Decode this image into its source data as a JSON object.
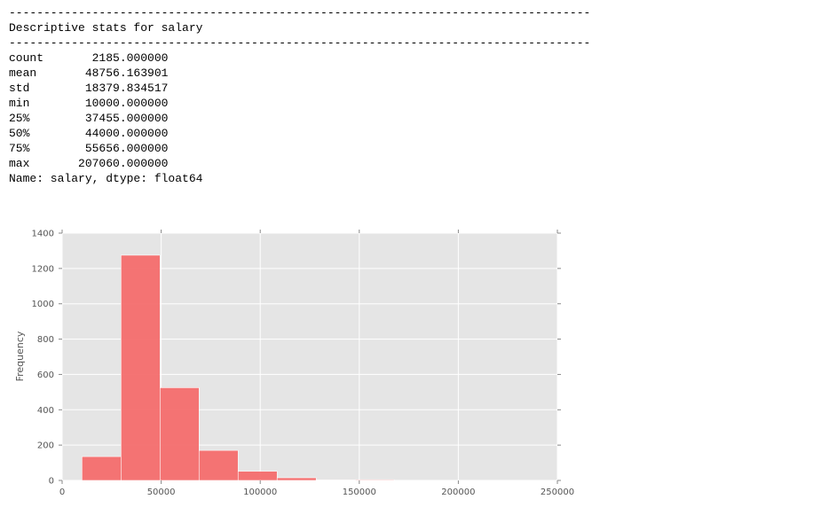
{
  "output": {
    "rule": "------------------------------------------------------------------------------------",
    "heading": "Descriptive stats for salary",
    "stats": [
      {
        "label": "count",
        "value": "2185.000000"
      },
      {
        "label": "mean",
        "value": "48756.163901"
      },
      {
        "label": "std",
        "value": "18379.834517"
      },
      {
        "label": "min",
        "value": "10000.000000"
      },
      {
        "label": "25%",
        "value": "37455.000000"
      },
      {
        "label": "50%",
        "value": "44000.000000"
      },
      {
        "label": "75%",
        "value": "55656.000000"
      },
      {
        "label": "max",
        "value": "207060.000000"
      }
    ],
    "footer": "Name: salary, dtype: float64"
  },
  "chart_data": {
    "type": "bar",
    "title": "",
    "xlabel": "",
    "ylabel": "Frequency",
    "xlim": [
      0,
      250000
    ],
    "ylim": [
      0,
      1400
    ],
    "xticks": [
      0,
      50000,
      100000,
      150000,
      200000,
      250000
    ],
    "yticks": [
      0,
      200,
      400,
      600,
      800,
      1000,
      1200,
      1400
    ],
    "grid": true,
    "bar_color": "#f46d6d",
    "bins": [
      {
        "start": 10000,
        "end": 29706,
        "count": 135
      },
      {
        "start": 29706,
        "end": 49412,
        "count": 1275
      },
      {
        "start": 49412,
        "end": 69118,
        "count": 525
      },
      {
        "start": 69118,
        "end": 88824,
        "count": 170
      },
      {
        "start": 88824,
        "end": 108530,
        "count": 52
      },
      {
        "start": 108530,
        "end": 128236,
        "count": 15
      },
      {
        "start": 128236,
        "end": 147942,
        "count": 3
      },
      {
        "start": 147942,
        "end": 167648,
        "count": 4
      },
      {
        "start": 167648,
        "end": 187354,
        "count": 1
      },
      {
        "start": 187354,
        "end": 207060,
        "count": 1
      }
    ]
  }
}
